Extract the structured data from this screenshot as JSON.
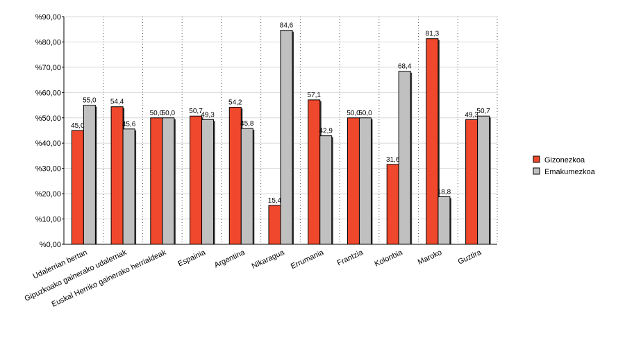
{
  "chart_data": {
    "type": "bar",
    "categories": [
      "Udalerrian bertan",
      "Gipuzkoako gainerako udalerriak",
      "Euskal Herriko gainerako herrialdeak",
      "Espainia",
      "Argentina",
      "Nikaragua",
      "Errumania",
      "Frantzia",
      "Kolonbia",
      "Maroko",
      "Guztira"
    ],
    "series": [
      {
        "name": "Gizonezkoa",
        "color": "#f0482c",
        "values": [
          45.0,
          54.4,
          50.0,
          50.7,
          54.2,
          15.4,
          57.1,
          50.0,
          31.6,
          81.3,
          49.3
        ],
        "value_labels": [
          "45,0",
          "54,4",
          "50,0",
          "50,7",
          "54,2",
          "15,4",
          "57,1",
          "50,0",
          "31,6",
          "81,3",
          "49,3"
        ]
      },
      {
        "name": "Emakumezkoa",
        "color": "#c0c0c0",
        "values": [
          55.0,
          45.6,
          50.0,
          49.3,
          45.8,
          84.6,
          42.9,
          50.0,
          68.4,
          18.8,
          50.7
        ],
        "value_labels": [
          "55,0",
          "45,6",
          "50,0",
          "49,3",
          "45,8",
          "84,6",
          "42,9",
          "50,0",
          "68,4",
          "18,8",
          "50,7"
        ]
      }
    ],
    "ylim": [
      0,
      90
    ],
    "yticks": [
      {
        "value": 0,
        "label": "%0,00"
      },
      {
        "value": 10,
        "label": "%10,00"
      },
      {
        "value": 20,
        "label": "%20,00"
      },
      {
        "value": 30,
        "label": "%30,00"
      },
      {
        "value": 40,
        "label": "%40,00"
      },
      {
        "value": 50,
        "label": "%50,00"
      },
      {
        "value": 60,
        "label": "%60,00"
      },
      {
        "value": 70,
        "label": "%70,00"
      },
      {
        "value": 80,
        "label": "%80,00"
      },
      {
        "value": 90,
        "label": "%90,00"
      }
    ],
    "grid": true,
    "legend": "right"
  }
}
